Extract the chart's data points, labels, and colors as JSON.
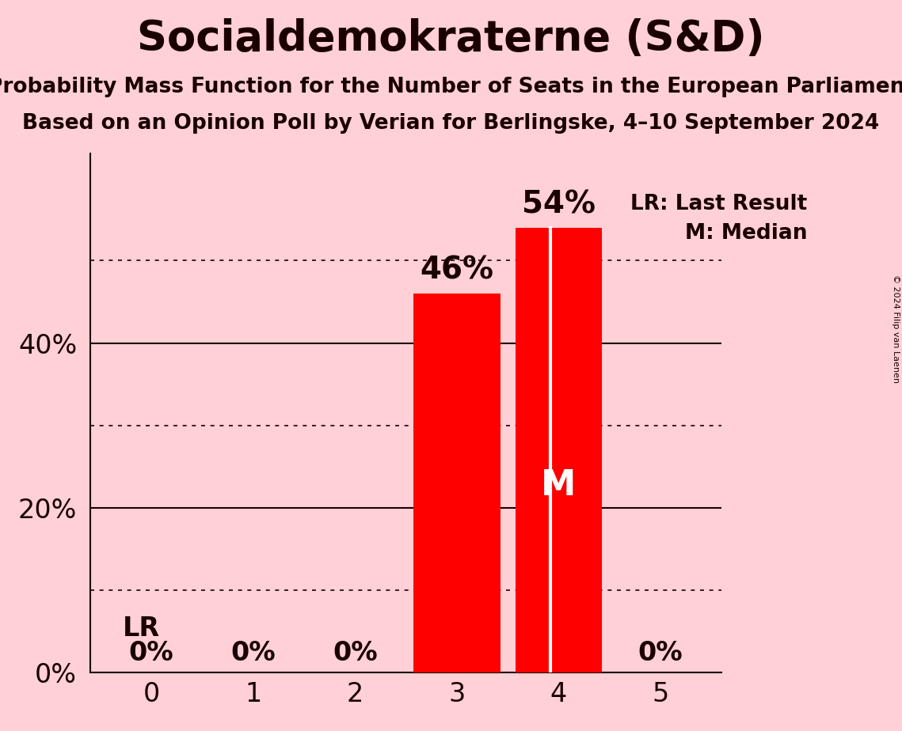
{
  "title": "Socialdemokraterne (S&D)",
  "subtitle1": "Probability Mass Function for the Number of Seats in the European Parliament",
  "subtitle2": "Based on an Opinion Poll by Verian for Berlingske, 4–10 September 2024",
  "categories": [
    0,
    1,
    2,
    3,
    4,
    5
  ],
  "values": [
    0.0,
    0.0,
    0.0,
    0.46,
    0.54,
    0.0
  ],
  "bar_color": "#FF0000",
  "background_color": "#FFD0D6",
  "text_color": "#1A0000",
  "title_fontsize": 38,
  "subtitle_fontsize": 19,
  "ylabel_ticks": [
    0,
    0.2,
    0.4
  ],
  "ylim": [
    0,
    0.63
  ],
  "dotted_lines": [
    0.1,
    0.3,
    0.5
  ],
  "solid_lines": [
    0.2,
    0.4
  ],
  "lr_bar_idx": 0,
  "median_bar_idx": 4,
  "lr_line_bar_idx": 4,
  "legend_lr": "LR: Last Result",
  "legend_m": "M: Median",
  "copyright": "© 2024 Filip van Laenen",
  "bar_width": 0.85
}
